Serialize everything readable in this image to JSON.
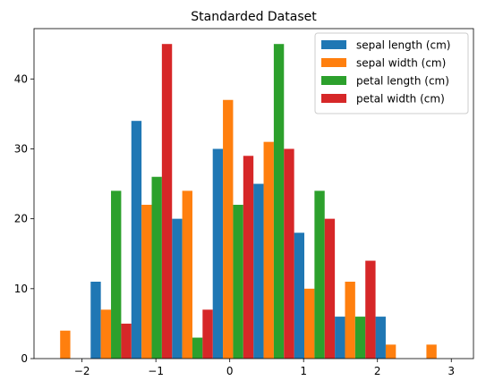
{
  "chart_data": {
    "type": "bar",
    "title": "Standarded Dataset",
    "xlabel": "",
    "ylabel": "",
    "xlim": [
      -2.65,
      3.3
    ],
    "ylim": [
      0,
      47.2
    ],
    "x_ticks": [
      -2,
      -1,
      0,
      1,
      2,
      3
    ],
    "x_tick_labels": [
      "−2",
      "−1",
      "0",
      "1",
      "2",
      "3"
    ],
    "y_ticks": [
      0,
      10,
      20,
      30,
      40
    ],
    "y_tick_labels": [
      "0",
      "10",
      "20",
      "30",
      "40"
    ],
    "grid": false,
    "legend_position": "top-right",
    "bin_edges": [
      -2.434,
      -1.883,
      -1.332,
      -0.781,
      -0.23,
      0.321,
      0.872,
      1.423,
      1.974,
      2.525,
      3.076
    ],
    "series": [
      {
        "name": "sepal length (cm)",
        "color": "#1f77b4",
        "values": [
          0,
          11,
          34,
          20,
          30,
          25,
          18,
          6,
          6,
          0
        ]
      },
      {
        "name": "sepal width (cm)",
        "color": "#ff7f0e",
        "values": [
          4,
          7,
          22,
          24,
          37,
          31,
          10,
          11,
          2,
          2
        ]
      },
      {
        "name": "petal length (cm)",
        "color": "#2ca02c",
        "values": [
          0,
          24,
          26,
          3,
          22,
          45,
          24,
          6,
          0,
          0
        ]
      },
      {
        "name": "petal width (cm)",
        "color": "#d62728",
        "values": [
          0,
          5,
          45,
          7,
          29,
          30,
          20,
          14,
          0,
          0
        ]
      }
    ]
  }
}
